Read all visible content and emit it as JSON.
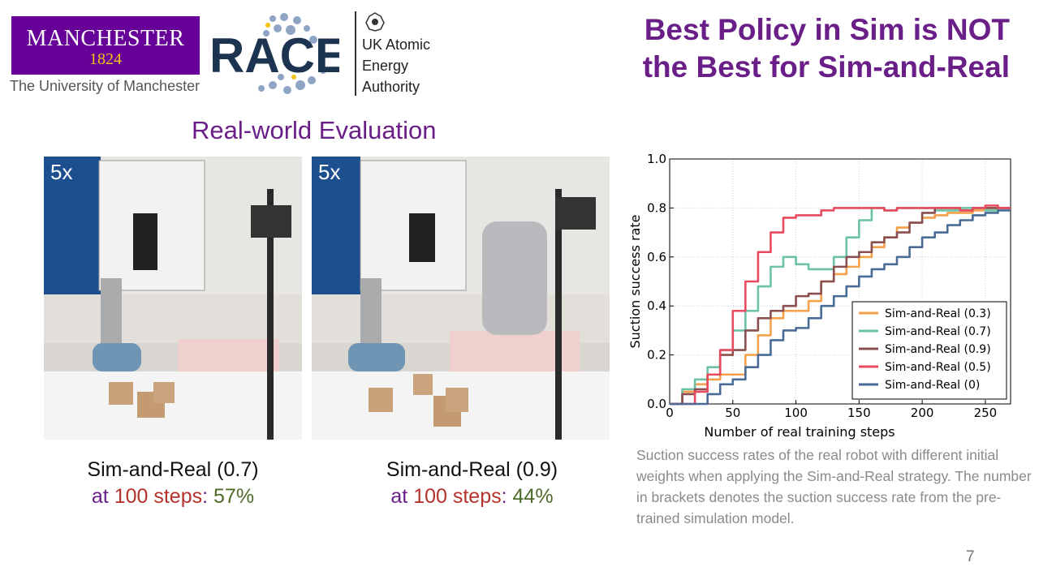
{
  "logos": {
    "uom_name": "MANCHESTER",
    "uom_year": "1824",
    "uom_subtitle": "The University of Manchester",
    "race": "RACE",
    "ukaea_lines": [
      "UK Atomic",
      "Energy",
      "Authority"
    ]
  },
  "title_lines": [
    "Best Policy in Sim is NOT",
    "the Best for Sim-and-Real"
  ],
  "section_title": "Real-world Evaluation",
  "videos": [
    {
      "speed": "5x",
      "label": "Sim-and-Real (0.7)",
      "at": "at ",
      "steps": "100 steps",
      "colon": ": ",
      "rate": "57%"
    },
    {
      "speed": "5x",
      "label": "Sim-and-Real (0.9)",
      "at": "at ",
      "steps": "100 steps",
      "colon": ": ",
      "rate": "44%"
    }
  ],
  "chart_caption": "Suction success rates of the real robot with different initial weights when applying the Sim-and-Real strategy. The number in brackets denotes the suction success rate from the pre-trained simulation model.",
  "page_number": "7",
  "colors": {
    "purple": "#6a1e88",
    "red": "#b5312b",
    "green": "#4e6a2a"
  },
  "chart_data": {
    "type": "line",
    "title": "",
    "xlabel": "Number of real training steps",
    "ylabel": "Suction success rate",
    "xlim": [
      0,
      270
    ],
    "ylim": [
      0,
      1.0
    ],
    "xticks": [
      0,
      50,
      100,
      150,
      200,
      250
    ],
    "yticks": [
      0.0,
      0.2,
      0.4,
      0.6,
      0.8,
      1.0
    ],
    "grid": true,
    "legend_position": "lower-right",
    "series": [
      {
        "name": "Sim-and-Real (0.3)",
        "color": "#f5a04a",
        "x": [
          0,
          10,
          20,
          30,
          40,
          50,
          60,
          70,
          80,
          90,
          100,
          110,
          120,
          130,
          140,
          150,
          160,
          170,
          180,
          190,
          200,
          210,
          220,
          230,
          240,
          250,
          260,
          270
        ],
        "y": [
          0.0,
          0.05,
          0.08,
          0.1,
          0.12,
          0.12,
          0.2,
          0.28,
          0.35,
          0.38,
          0.38,
          0.42,
          0.5,
          0.53,
          0.56,
          0.6,
          0.64,
          0.68,
          0.72,
          0.74,
          0.76,
          0.77,
          0.78,
          0.78,
          0.79,
          0.8,
          0.8,
          0.8
        ]
      },
      {
        "name": "Sim-and-Real (0.7)",
        "color": "#6cc3a4",
        "x": [
          0,
          10,
          20,
          30,
          40,
          50,
          60,
          70,
          80,
          90,
          100,
          110,
          120,
          130,
          140,
          150,
          160,
          170,
          180,
          190,
          200,
          210,
          220,
          230,
          240,
          250,
          260,
          270
        ],
        "y": [
          0.0,
          0.06,
          0.1,
          0.15,
          0.22,
          0.3,
          0.38,
          0.48,
          0.56,
          0.6,
          0.57,
          0.55,
          0.55,
          0.6,
          0.68,
          0.75,
          0.8,
          0.79,
          0.8,
          0.8,
          0.8,
          0.79,
          0.79,
          0.8,
          0.8,
          0.79,
          0.8,
          0.8
        ]
      },
      {
        "name": "Sim-and-Real (0.9)",
        "color": "#8a4f4f",
        "x": [
          0,
          10,
          20,
          30,
          40,
          50,
          60,
          70,
          80,
          90,
          100,
          110,
          120,
          130,
          140,
          150,
          160,
          170,
          180,
          190,
          200,
          210,
          220,
          230,
          240,
          250,
          260,
          270
        ],
        "y": [
          0.0,
          0.04,
          0.06,
          0.12,
          0.2,
          0.22,
          0.3,
          0.35,
          0.38,
          0.4,
          0.44,
          0.45,
          0.5,
          0.56,
          0.6,
          0.62,
          0.66,
          0.68,
          0.7,
          0.74,
          0.78,
          0.8,
          0.8,
          0.79,
          0.8,
          0.8,
          0.8,
          0.8
        ]
      },
      {
        "name": "Sim-and-Real (0.5)",
        "color": "#e84a5f",
        "x": [
          0,
          10,
          20,
          30,
          40,
          50,
          60,
          70,
          80,
          90,
          100,
          110,
          120,
          130,
          140,
          150,
          160,
          170,
          180,
          190,
          200,
          210,
          220,
          230,
          240,
          250,
          260,
          270
        ],
        "y": [
          0.0,
          0.0,
          0.05,
          0.12,
          0.22,
          0.38,
          0.5,
          0.62,
          0.7,
          0.76,
          0.77,
          0.77,
          0.79,
          0.8,
          0.8,
          0.8,
          0.8,
          0.79,
          0.8,
          0.8,
          0.8,
          0.8,
          0.8,
          0.79,
          0.8,
          0.81,
          0.8,
          0.8
        ]
      },
      {
        "name": "Sim-and-Real (0)",
        "color": "#4a6b96",
        "x": [
          0,
          10,
          20,
          30,
          40,
          50,
          60,
          70,
          80,
          90,
          100,
          110,
          120,
          130,
          140,
          150,
          160,
          170,
          180,
          190,
          200,
          210,
          220,
          230,
          240,
          250,
          260,
          270
        ],
        "y": [
          0.0,
          0.0,
          0.0,
          0.04,
          0.08,
          0.1,
          0.15,
          0.2,
          0.26,
          0.3,
          0.31,
          0.35,
          0.4,
          0.44,
          0.48,
          0.52,
          0.55,
          0.57,
          0.6,
          0.64,
          0.68,
          0.7,
          0.73,
          0.75,
          0.77,
          0.78,
          0.79,
          0.79
        ]
      }
    ]
  }
}
